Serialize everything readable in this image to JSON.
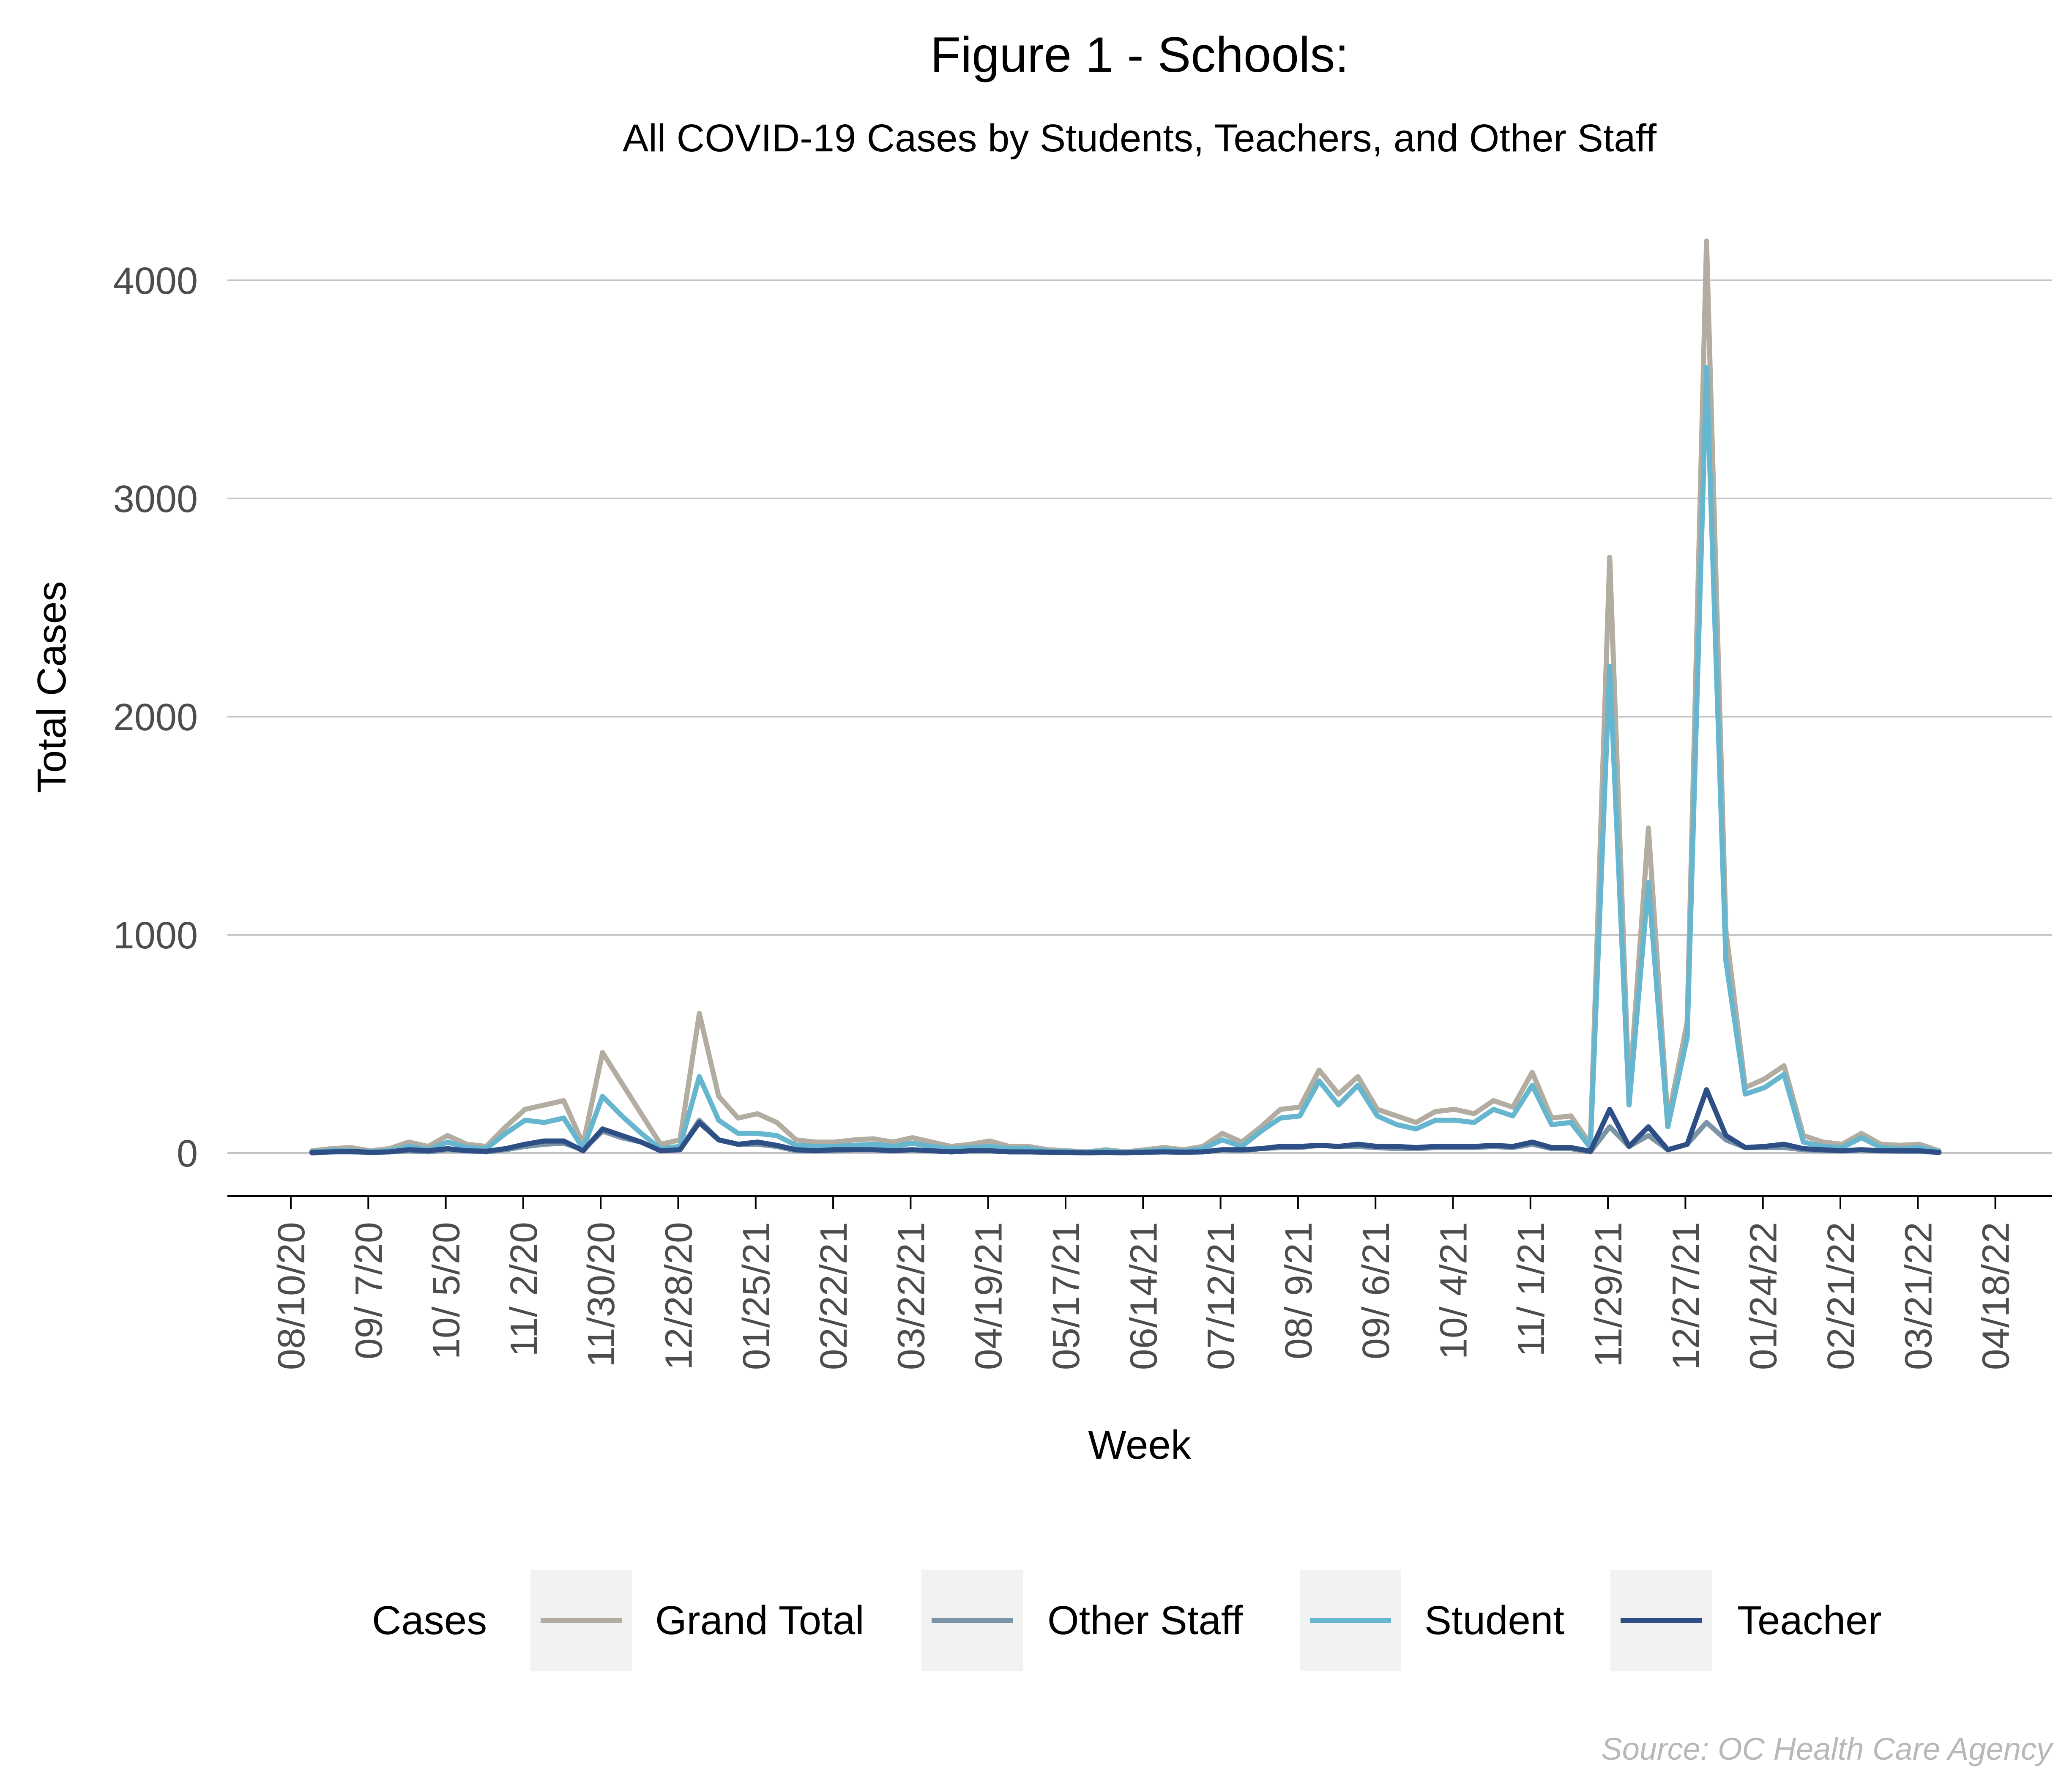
{
  "chart_data": {
    "type": "line",
    "title": "Figure 1 - Schools:",
    "subtitle": "All COVID-19 Cases by Students, Teachers, and Other Staff",
    "xlabel": "Week",
    "ylabel": "Total Cases",
    "caption": "Source: OC Health Care Agency",
    "ylim": [
      -200,
      4200
    ],
    "yticks": [
      0,
      1000,
      2000,
      3000,
      4000
    ],
    "xticks": [
      "08/10/20",
      "09/ 7/20",
      "10/ 5/20",
      "11/ 2/20",
      "11/30/20",
      "12/28/20",
      "01/25/21",
      "02/22/21",
      "03/22/21",
      "04/19/21",
      "05/17/21",
      "06/14/21",
      "07/12/21",
      "08/ 9/21",
      "09/ 6/21",
      "10/ 4/21",
      "11/ 1/21",
      "11/29/21",
      "12/27/21",
      "01/24/22",
      "02/21/22",
      "03/21/22",
      "04/18/22"
    ],
    "x_week_start": "08/10/20",
    "grid": "horizontal",
    "legend": {
      "title": "Cases",
      "position": "bottom"
    },
    "series": [
      {
        "name": "Grand Total",
        "color": "#b2ada0",
        "values": [
          10,
          20,
          25,
          10,
          20,
          50,
          30,
          80,
          40,
          30,
          120,
          200,
          220,
          240,
          40,
          460,
          320,
          180,
          40,
          60,
          640,
          260,
          160,
          180,
          140,
          60,
          50,
          50,
          60,
          65,
          50,
          70,
          50,
          30,
          40,
          55,
          30,
          30,
          15,
          10,
          5,
          15,
          5,
          15,
          25,
          15,
          30,
          90,
          50,
          120,
          200,
          210,
          380,
          270,
          350,
          200,
          170,
          140,
          190,
          200,
          180,
          240,
          210,
          370,
          160,
          170,
          40,
          2730,
          260,
          1490,
          150,
          600,
          4180,
          1020,
          300,
          340,
          400,
          80,
          50,
          40,
          90,
          40,
          35,
          40,
          10
        ]
      },
      {
        "name": "Other Staff",
        "color": "#7b95a6",
        "values": [
          0,
          5,
          5,
          3,
          5,
          10,
          5,
          15,
          10,
          5,
          15,
          30,
          40,
          45,
          15,
          100,
          70,
          50,
          10,
          15,
          150,
          60,
          40,
          40,
          30,
          10,
          10,
          10,
          15,
          15,
          10,
          15,
          10,
          5,
          10,
          10,
          5,
          5,
          3,
          2,
          1,
          3,
          1,
          3,
          5,
          3,
          5,
          15,
          10,
          20,
          25,
          25,
          35,
          30,
          30,
          25,
          20,
          20,
          25,
          25,
          25,
          30,
          25,
          40,
          20,
          20,
          5,
          120,
          30,
          80,
          15,
          40,
          140,
          60,
          25,
          25,
          25,
          15,
          10,
          10,
          15,
          10,
          8,
          8,
          2
        ]
      },
      {
        "name": "Student",
        "color": "#67b6cf",
        "values": [
          5,
          10,
          10,
          5,
          10,
          30,
          15,
          50,
          25,
          20,
          90,
          150,
          140,
          160,
          20,
          260,
          170,
          90,
          20,
          30,
          350,
          150,
          90,
          90,
          80,
          35,
          30,
          30,
          35,
          40,
          30,
          45,
          30,
          20,
          25,
          30,
          20,
          20,
          8,
          6,
          3,
          10,
          3,
          8,
          15,
          8,
          20,
          60,
          30,
          100,
          160,
          170,
          330,
          220,
          310,
          170,
          130,
          110,
          150,
          150,
          140,
          200,
          170,
          310,
          130,
          140,
          25,
          2230,
          220,
          1240,
          120,
          530,
          3600,
          880,
          270,
          300,
          360,
          50,
          30,
          25,
          70,
          25,
          20,
          25,
          6
        ]
      },
      {
        "name": "Teacher",
        "color": "#2e4f86",
        "values": [
          3,
          5,
          8,
          3,
          5,
          15,
          10,
          20,
          10,
          8,
          20,
          40,
          55,
          55,
          10,
          110,
          80,
          50,
          10,
          15,
          140,
          60,
          40,
          50,
          35,
          15,
          10,
          15,
          15,
          15,
          10,
          15,
          10,
          5,
          10,
          10,
          5,
          5,
          4,
          2,
          1,
          2,
          1,
          4,
          5,
          4,
          5,
          15,
          15,
          20,
          30,
          30,
          35,
          30,
          40,
          30,
          30,
          25,
          30,
          30,
          30,
          35,
          30,
          50,
          25,
          25,
          8,
          200,
          30,
          120,
          15,
          40,
          290,
          80,
          25,
          30,
          40,
          20,
          15,
          10,
          15,
          10,
          10,
          10,
          3
        ]
      }
    ]
  }
}
